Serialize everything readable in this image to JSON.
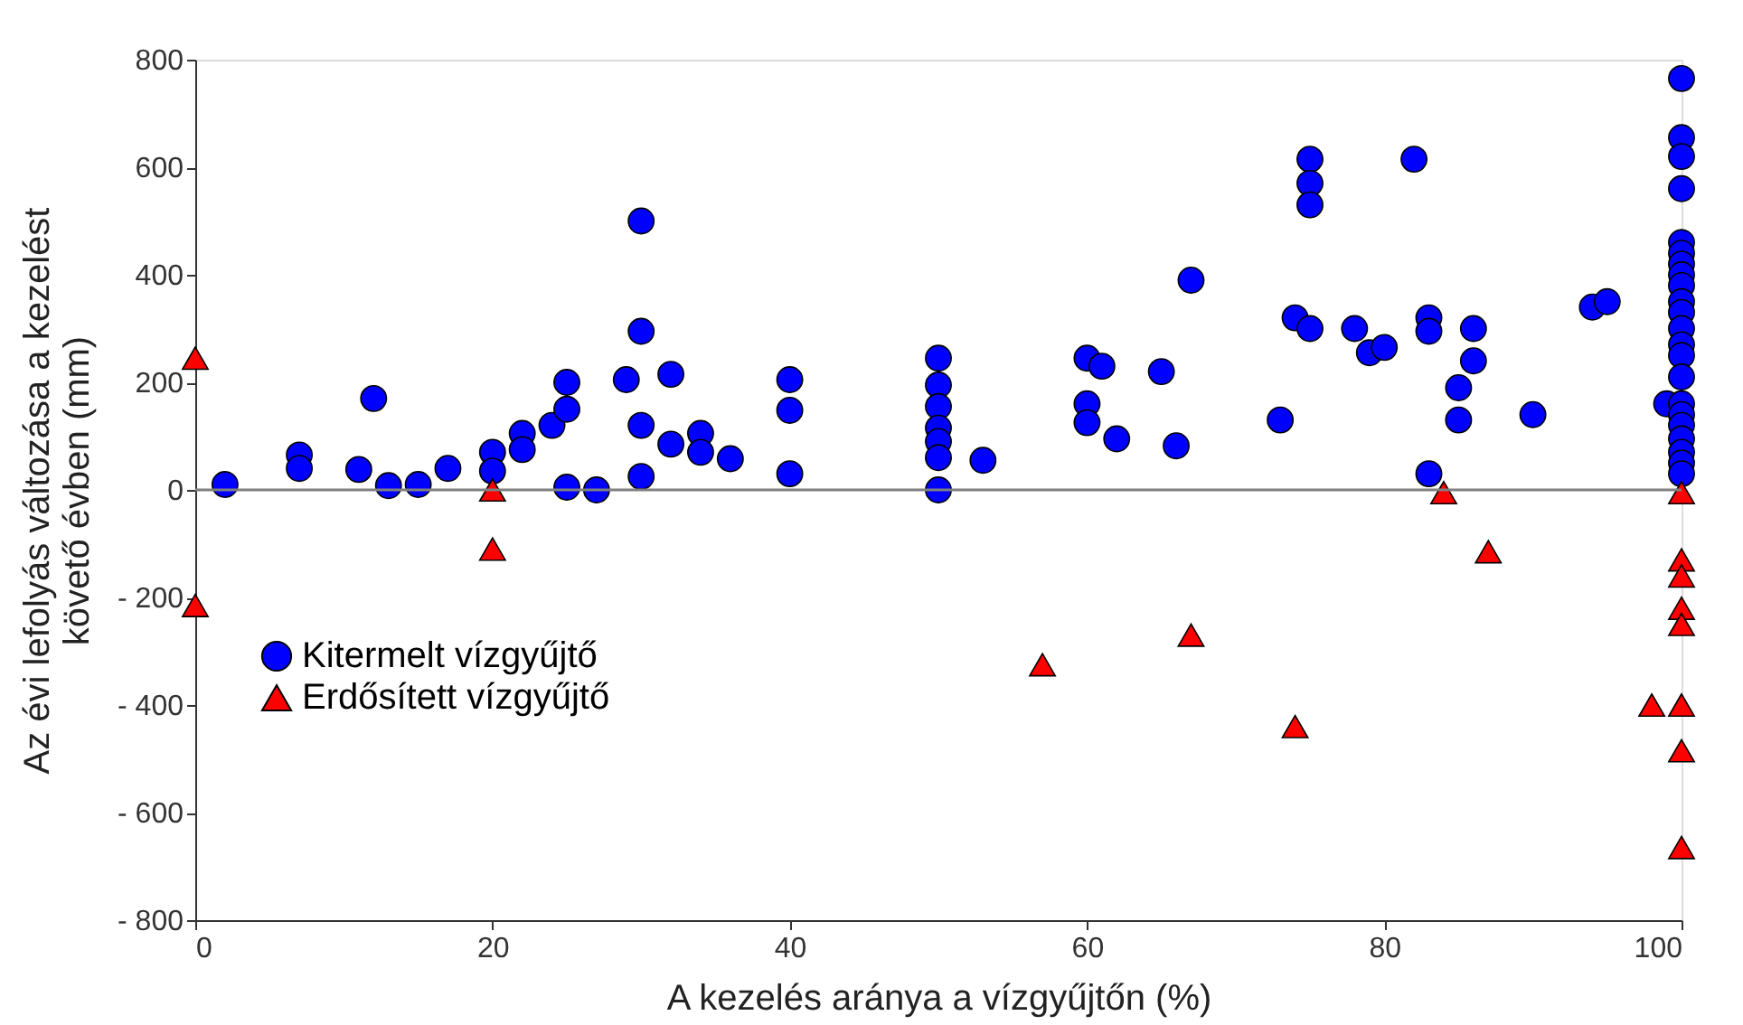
{
  "chart_data": {
    "type": "scatter",
    "xlabel": "A kezelés aránya a vízgyűjtőn (%)",
    "ylabel": "Az évi lefolyás változása a kezelést\nkövető évben (mm)",
    "xlim": [
      0,
      100
    ],
    "xticks": [
      0,
      20,
      40,
      60,
      80,
      100
    ],
    "ylim": [
      -800,
      800
    ],
    "yticks": [
      {
        "value": -800,
        "label": "- 800"
      },
      {
        "value": -600,
        "label": "- 600"
      },
      {
        "value": -400,
        "label": "- 400"
      },
      {
        "value": -200,
        "label": "- 200"
      },
      0,
      200,
      400,
      600,
      800
    ],
    "grid": false,
    "legend": "left",
    "ref_lines": [
      {
        "axis": "y",
        "value": 0,
        "color": "#808080"
      }
    ],
    "series": [
      {
        "name": "Kitermelt vízgyűjtő",
        "color": "#0000ff",
        "marker": "circle",
        "x": [
          2,
          7,
          7,
          11,
          12,
          13,
          15,
          17,
          20,
          20,
          22,
          22,
          24,
          25,
          25,
          25,
          27,
          29,
          30,
          30,
          30,
          30,
          32,
          32,
          34,
          34,
          36,
          40,
          40,
          40,
          50,
          50,
          50,
          50,
          50,
          50,
          50,
          53,
          60,
          60,
          60,
          61,
          62,
          65,
          66,
          67,
          73,
          74,
          75,
          75,
          75,
          75,
          78,
          79,
          80,
          82,
          83,
          83,
          83,
          85,
          85,
          86,
          86,
          90,
          94,
          95,
          99,
          100,
          100,
          100,
          100,
          100,
          100,
          100,
          100,
          100,
          100,
          100,
          100,
          100,
          100,
          100,
          100,
          100,
          100,
          100,
          100,
          100,
          100
        ],
        "values": [
          10,
          65,
          40,
          38,
          170,
          8,
          10,
          40,
          70,
          35,
          105,
          75,
          120,
          200,
          150,
          5,
          0,
          205,
          500,
          295,
          120,
          25,
          215,
          85,
          105,
          70,
          58,
          205,
          148,
          30,
          245,
          195,
          155,
          115,
          90,
          60,
          0,
          55,
          245,
          160,
          125,
          230,
          95,
          220,
          82,
          390,
          130,
          320,
          615,
          570,
          530,
          300,
          300,
          255,
          265,
          615,
          320,
          295,
          30,
          190,
          130,
          300,
          240,
          140,
          340,
          350,
          160,
          765,
          655,
          620,
          560,
          460,
          440,
          420,
          400,
          380,
          350,
          330,
          300,
          270,
          250,
          210,
          160,
          140,
          120,
          95,
          70,
          50,
          30
        ]
      },
      {
        "name": "Erdősített vízgyűjtő",
        "color": "#ff0000",
        "marker": "triangle",
        "x": [
          0,
          0,
          20,
          20,
          57,
          67,
          74,
          84,
          87,
          98,
          100,
          100,
          100,
          100,
          100,
          100,
          100,
          100
        ],
        "values": [
          245,
          -215,
          0,
          -110,
          -325,
          -270,
          -440,
          -5,
          -115,
          -400,
          -400,
          -5,
          -130,
          -160,
          -220,
          -250,
          -485,
          -665
        ]
      }
    ]
  }
}
